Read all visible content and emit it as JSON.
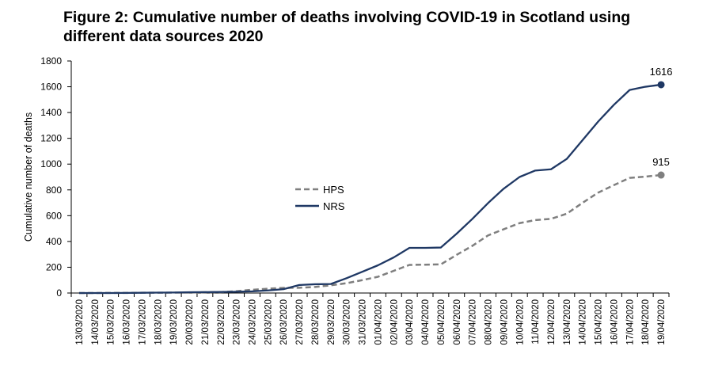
{
  "chart_data": {
    "type": "line",
    "title": "Figure 2: Cumulative number of deaths involving COVID-19 in Scotland using different data sources 2020",
    "xlabel": "",
    "ylabel": "Cumulative number of deaths",
    "ylim": [
      0,
      1800
    ],
    "yticks": [
      0,
      200,
      400,
      600,
      800,
      1000,
      1200,
      1400,
      1600,
      1800
    ],
    "categories": [
      "13/03/2020",
      "14/03/2020",
      "15/03/2020",
      "16/03/2020",
      "17/03/2020",
      "18/03/2020",
      "19/03/2020",
      "20/03/2020",
      "21/03/2020",
      "22/03/2020",
      "23/03/2020",
      "24/03/2020",
      "25/03/2020",
      "26/03/2020",
      "27/03/2020",
      "28/03/2020",
      "29/03/2020",
      "30/03/2020",
      "31/03/2020",
      "01/04/2020",
      "02/04/2020",
      "03/04/2020",
      "04/04/2020",
      "05/04/2020",
      "06/04/2020",
      "07/04/2020",
      "08/04/2020",
      "09/04/2020",
      "10/04/2020",
      "11/04/2020",
      "12/04/2020",
      "13/04/2020",
      "14/04/2020",
      "15/04/2020",
      "16/04/2020",
      "17/04/2020",
      "18/04/2020",
      "19/04/2020"
    ],
    "series": [
      {
        "name": "HPS",
        "color": "#7f7f7f",
        "style": "dashed",
        "values": [
          0,
          0,
          1,
          1,
          2,
          2,
          3,
          3,
          6,
          7,
          14,
          25,
          33,
          40,
          41,
          47,
          60,
          76,
          100,
          126,
          172,
          218,
          220,
          222,
          296,
          366,
          447,
          495,
          542,
          566,
          575,
          615,
          699,
          779,
          837,
          893,
          903,
          915
        ],
        "end_label": "915"
      },
      {
        "name": "NRS",
        "color": "#1f3864",
        "style": "solid",
        "values": [
          0,
          0,
          0,
          1,
          2,
          3,
          4,
          6,
          7,
          8,
          10,
          13,
          20,
          30,
          62,
          68,
          70,
          115,
          165,
          215,
          276,
          350,
          350,
          353,
          460,
          575,
          698,
          810,
          900,
          950,
          960,
          1040,
          1185,
          1330,
          1460,
          1575,
          1600,
          1616
        ],
        "end_label": "1616"
      }
    ],
    "legend": "center-left"
  }
}
